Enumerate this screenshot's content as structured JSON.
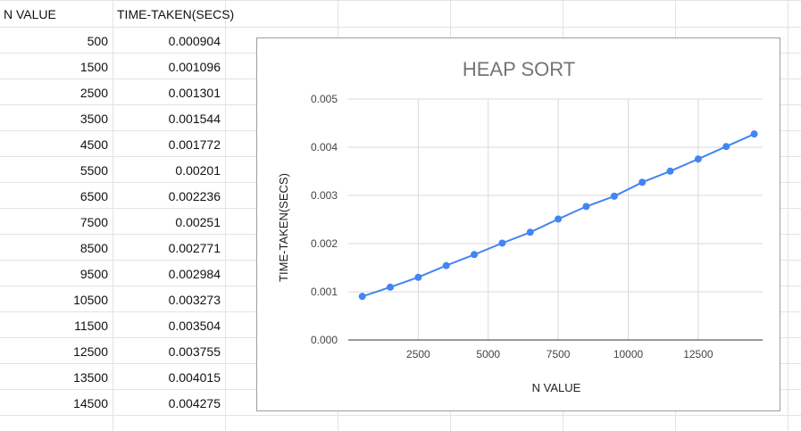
{
  "sheet": {
    "header_a": "N VALUE",
    "header_b": "TIME-TAKEN(SECS)",
    "rows": [
      {
        "n": "500",
        "t": "0.000904"
      },
      {
        "n": "1500",
        "t": "0.001096"
      },
      {
        "n": "2500",
        "t": "0.001301"
      },
      {
        "n": "3500",
        "t": "0.001544"
      },
      {
        "n": "4500",
        "t": "0.001772"
      },
      {
        "n": "5500",
        "t": "0.00201"
      },
      {
        "n": "6500",
        "t": "0.002236"
      },
      {
        "n": "7500",
        "t": "0.00251"
      },
      {
        "n": "8500",
        "t": "0.002771"
      },
      {
        "n": "9500",
        "t": "0.002984"
      },
      {
        "n": "10500",
        "t": "0.003273"
      },
      {
        "n": "11500",
        "t": "0.003504"
      },
      {
        "n": "12500",
        "t": "0.003755"
      },
      {
        "n": "13500",
        "t": "0.004015"
      },
      {
        "n": "14500",
        "t": "0.004275"
      }
    ]
  },
  "chart_data": {
    "type": "line",
    "title": "HEAP SORT",
    "xlabel": "N VALUE",
    "ylabel": "TIME-TAKEN(SECS)",
    "x": [
      500,
      1500,
      2500,
      3500,
      4500,
      5500,
      6500,
      7500,
      8500,
      9500,
      10500,
      11500,
      12500,
      13500,
      14500
    ],
    "series": [
      {
        "values": [
          0.000904,
          0.001096,
          0.001301,
          0.001544,
          0.001772,
          0.00201,
          0.002236,
          0.00251,
          0.002771,
          0.002984,
          0.003273,
          0.003504,
          0.003755,
          0.004015,
          0.004275
        ]
      }
    ],
    "xticks": [
      "2500",
      "5000",
      "7500",
      "10000",
      "12500"
    ],
    "xtick_values": [
      2500,
      5000,
      7500,
      10000,
      12500
    ],
    "yticks": [
      "0.000",
      "0.001",
      "0.002",
      "0.003",
      "0.004",
      "0.005"
    ],
    "ytick_values": [
      0,
      0.001,
      0.002,
      0.003,
      0.004,
      0.005
    ],
    "xlim": [
      0,
      14800
    ],
    "ylim": [
      0,
      0.005
    ],
    "grid": true,
    "legend": "none",
    "line_color": "#4285f4"
  }
}
